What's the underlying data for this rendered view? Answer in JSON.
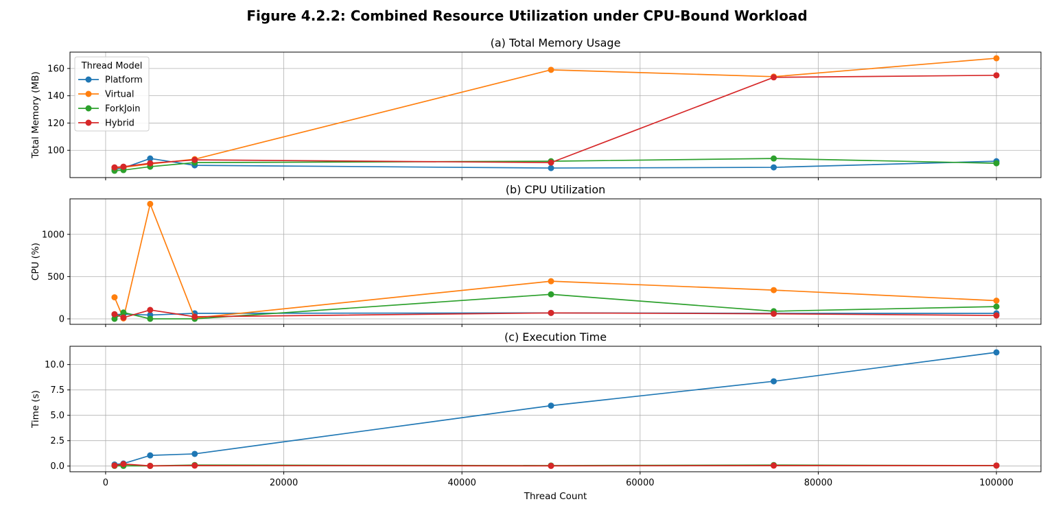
{
  "figure_title": "Figure 4.2.2: Combined Resource Utilization under CPU-Bound Workload",
  "colors": {
    "Platform": "#1f77b4",
    "Virtual": "#ff7f0e",
    "ForkJoin": "#2ca02c",
    "Hybrid": "#d62728",
    "grid": "#b0b0b0"
  },
  "chart_data": [
    {
      "type": "line",
      "title": "(a) Total Memory Usage",
      "xlabel": "",
      "ylabel": "Total Memory (MB)",
      "x": [
        1000,
        2000,
        5000,
        10000,
        50000,
        75000,
        100000
      ],
      "xlim": [
        -4000,
        105000
      ],
      "ylim": [
        80,
        172
      ],
      "xticks": [
        0,
        20000,
        40000,
        60000,
        80000,
        100000
      ],
      "xtick_labels_visible": false,
      "yticks": [
        100,
        120,
        140,
        160
      ],
      "grid": true,
      "legend": {
        "title": "Thread Model",
        "placement": "upper-left"
      },
      "series": [
        {
          "name": "Platform",
          "values": [
            86,
            87,
            94,
            89,
            87,
            87.5,
            92
          ]
        },
        {
          "name": "Virtual",
          "values": [
            87,
            87.5,
            90,
            93.5,
            159,
            154,
            167.5
          ]
        },
        {
          "name": "ForkJoin",
          "values": [
            85,
            85.5,
            88,
            91,
            92,
            94,
            90.5
          ]
        },
        {
          "name": "Hybrid",
          "values": [
            87.5,
            88,
            90.5,
            93,
            91,
            153.5,
            155
          ]
        }
      ]
    },
    {
      "type": "line",
      "title": "(b) CPU Utilization",
      "xlabel": "",
      "ylabel": "CPU (%)",
      "x": [
        1000,
        2000,
        5000,
        10000,
        50000,
        75000,
        100000
      ],
      "xlim": [
        -4000,
        105000
      ],
      "ylim": [
        -65,
        1420
      ],
      "xticks": [
        0,
        20000,
        40000,
        60000,
        80000,
        100000
      ],
      "xtick_labels_visible": false,
      "yticks": [
        0,
        500,
        1000
      ],
      "grid": true,
      "series": [
        {
          "name": "Platform",
          "values": [
            50,
            55,
            45,
            65,
            70,
            65,
            65
          ]
        },
        {
          "name": "Virtual",
          "values": [
            255,
            5,
            1360,
            10,
            445,
            340,
            215
          ]
        },
        {
          "name": "ForkJoin",
          "values": [
            0,
            75,
            0,
            0,
            290,
            90,
            145
          ]
        },
        {
          "name": "Hybrid",
          "values": [
            55,
            15,
            105,
            25,
            70,
            60,
            40
          ]
        }
      ]
    },
    {
      "type": "line",
      "title": "(c) Execution Time",
      "xlabel": "Thread Count",
      "ylabel": "Time (s)",
      "x": [
        1000,
        2000,
        5000,
        10000,
        50000,
        75000,
        100000
      ],
      "xlim": [
        -4000,
        105000
      ],
      "ylim": [
        -0.56,
        11.8
      ],
      "xticks": [
        0,
        20000,
        40000,
        60000,
        80000,
        100000
      ],
      "xtick_labels_visible": true,
      "yticks": [
        0.0,
        2.5,
        5.0,
        7.5,
        10.0
      ],
      "ytick_labels": [
        "0.0",
        "2.5",
        "5.0",
        "7.5",
        "10.0"
      ],
      "grid": true,
      "series": [
        {
          "name": "Platform",
          "values": [
            0.15,
            0.25,
            1.05,
            1.2,
            5.95,
            8.35,
            11.2
          ]
        },
        {
          "name": "Virtual",
          "values": [
            0.05,
            0.05,
            0.02,
            0.05,
            0.03,
            0.05,
            0.05
          ]
        },
        {
          "name": "ForkJoin",
          "values": [
            0.02,
            0.02,
            0.02,
            0.1,
            0.05,
            0.1,
            0.05
          ]
        },
        {
          "name": "Hybrid",
          "values": [
            0.05,
            0.2,
            0.02,
            0.05,
            0.02,
            0.05,
            0.05
          ]
        }
      ]
    }
  ]
}
